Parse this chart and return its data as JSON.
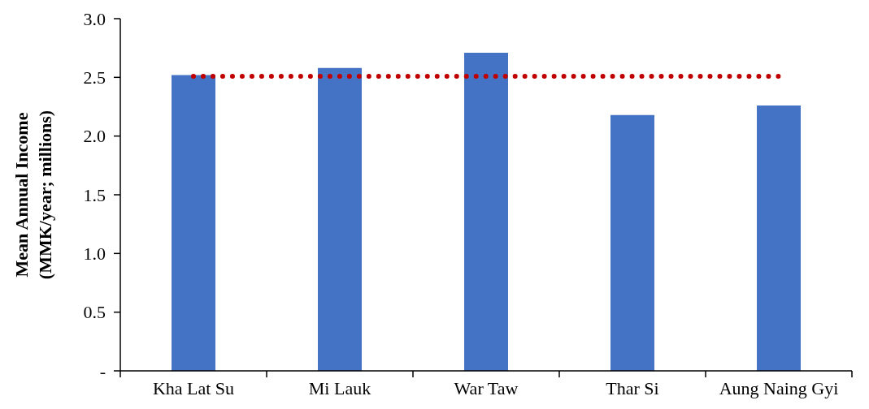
{
  "chart_data": {
    "type": "bar",
    "ylabel": "Mean Annual Income\n(MMK/year; millions)",
    "categories": [
      "Kha Lat Su",
      "Mi Lauk",
      "War Taw",
      "Thar Si",
      "Aung Naing Gyi"
    ],
    "series": [
      {
        "type": "bar",
        "color": "#4472c4",
        "values": [
          2.52,
          2.58,
          2.71,
          2.18,
          2.26
        ]
      },
      {
        "type": "line",
        "color": "#c00000",
        "values": [
          2.51,
          2.51,
          2.51,
          2.51,
          2.51
        ],
        "line_style": "dotted",
        "marker": "none"
      }
    ],
    "ylim": [
      0,
      3
    ],
    "yticks": [
      {
        "value": 0,
        "label": "-"
      },
      0.5,
      {
        "value": 1,
        "label": "1.0"
      },
      1.5,
      {
        "value": 2,
        "label": "2.0"
      },
      2.5,
      {
        "value": 3,
        "label": "3.0"
      }
    ]
  }
}
